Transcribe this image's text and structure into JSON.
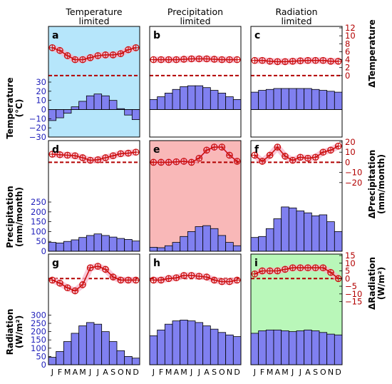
{
  "figure": {
    "col_titles": [
      "Temperature\nlimited",
      "Precipitation\nlimited",
      "Radiation\nlimited"
    ],
    "left_labels": [
      {
        "line1": "Temperature",
        "line2": "(°C)"
      },
      {
        "line1": "Precipitation",
        "line2": "(mm/month)"
      },
      {
        "line1": "Radiation",
        "line2": "(W/m²)"
      }
    ],
    "right_labels": [
      "ΔTemperature",
      "ΔPrecipitation",
      "(mm/month)",
      "ΔRadiation",
      "(W/m²)"
    ],
    "right_labels_display": {
      "temp": "ΔTemperature",
      "prec_line1": "ΔPrecipitation",
      "prec_line2": "(mm/month)",
      "rad_line1": "ΔRadiation",
      "rad_line2": "(W/m²)"
    },
    "month_labels": [
      "J",
      "F",
      "M",
      "A",
      "M",
      "J",
      "J",
      "A",
      "S",
      "O",
      "N",
      "D"
    ],
    "colors": {
      "bar": "#8080f0",
      "bar_edge": "#000000",
      "delta_line": "#cc1111",
      "delta_band": "#f7b6cc",
      "dashed_zero": "#b30000",
      "right_axis": "#b30000",
      "highlight_blue": "#b6e6fb",
      "highlight_red": "#f9b8b8",
      "highlight_green": "#b9f7b9"
    }
  },
  "chart_data": [
    {
      "panel": "a",
      "type": "bar",
      "variable": "Temperature",
      "row": 0,
      "col": 0,
      "highlight": "blue",
      "categories": [
        "J",
        "F",
        "M",
        "A",
        "M",
        "J",
        "J",
        "A",
        "S",
        "O",
        "N",
        "D"
      ],
      "values": [
        -12,
        -9,
        -4,
        3,
        9,
        15,
        17,
        15,
        10,
        1,
        -6,
        -11
      ],
      "ylim": [
        -30,
        30
      ],
      "yticks": [
        "−30",
        "−20",
        "−10",
        "0",
        "10",
        "20",
        "30"
      ],
      "delta": [
        7,
        6.3,
        5,
        4,
        4,
        4.5,
        5,
        5.2,
        5.2,
        5.5,
        6.5,
        7
      ]
    },
    {
      "panel": "b",
      "type": "bar",
      "variable": "Temperature",
      "row": 0,
      "col": 1,
      "highlight": "none",
      "categories": [
        "J",
        "F",
        "M",
        "A",
        "M",
        "J",
        "J",
        "A",
        "S",
        "O",
        "N",
        "D"
      ],
      "values": [
        11,
        14,
        18,
        22,
        25,
        26,
        26,
        24,
        21,
        18,
        14,
        11
      ],
      "delta": [
        4,
        4,
        4,
        4,
        4.1,
        4.2,
        4.2,
        4.2,
        4.1,
        4,
        4,
        4
      ]
    },
    {
      "panel": "c",
      "type": "bar",
      "variable": "Temperature",
      "row": 0,
      "col": 2,
      "highlight": "none",
      "categories": [
        "J",
        "F",
        "M",
        "A",
        "M",
        "J",
        "J",
        "A",
        "S",
        "O",
        "N",
        "D"
      ],
      "values": [
        19,
        21,
        22,
        23,
        23,
        23,
        23,
        23,
        22,
        21,
        20,
        19
      ],
      "delta": [
        3.8,
        3.8,
        3.6,
        3.5,
        3.5,
        3.6,
        3.7,
        3.8,
        3.8,
        3.8,
        3.6,
        3.6
      ],
      "right_ylim": [
        -2,
        12
      ],
      "right_yticks": [
        "0",
        "2",
        "4",
        "6",
        "8",
        "10",
        "12"
      ]
    },
    {
      "panel": "d",
      "type": "bar",
      "variable": "Precipitation",
      "row": 1,
      "col": 0,
      "highlight": "none",
      "categories": [
        "J",
        "F",
        "M",
        "A",
        "M",
        "J",
        "J",
        "A",
        "S",
        "O",
        "N",
        "D"
      ],
      "values": [
        45,
        42,
        50,
        58,
        70,
        80,
        88,
        80,
        72,
        65,
        60,
        52
      ],
      "ylim": [
        0,
        290
      ],
      "yticks": [
        "0",
        "50",
        "100",
        "150",
        "200",
        "250"
      ],
      "delta": [
        8,
        7.5,
        7,
        6.5,
        4.5,
        2,
        2.5,
        4.5,
        6.5,
        8.5,
        9,
        10
      ]
    },
    {
      "panel": "e",
      "type": "bar",
      "variable": "Precipitation",
      "row": 1,
      "col": 1,
      "highlight": "red",
      "categories": [
        "J",
        "F",
        "M",
        "A",
        "M",
        "J",
        "J",
        "A",
        "S",
        "O",
        "N",
        "D"
      ],
      "values": [
        20,
        18,
        28,
        45,
        75,
        100,
        125,
        130,
        115,
        80,
        45,
        28
      ],
      "delta": [
        0,
        0,
        0,
        0.5,
        1,
        0,
        4,
        12,
        15,
        15,
        7,
        1
      ]
    },
    {
      "panel": "f",
      "type": "bar",
      "variable": "Precipitation",
      "row": 1,
      "col": 2,
      "highlight": "none",
      "categories": [
        "J",
        "F",
        "M",
        "A",
        "M",
        "J",
        "J",
        "A",
        "S",
        "O",
        "N",
        "D"
      ],
      "values": [
        70,
        75,
        115,
        165,
        225,
        220,
        205,
        195,
        180,
        185,
        150,
        100
      ],
      "delta": [
        7,
        1,
        7,
        15,
        6,
        2,
        5,
        4,
        5,
        10,
        12,
        16
      ],
      "right_ylim": [
        -30,
        20
      ],
      "right_yticks": [
        "−20",
        "−10",
        "0",
        "10",
        "20"
      ]
    },
    {
      "panel": "g",
      "type": "bar",
      "variable": "Radiation",
      "row": 2,
      "col": 0,
      "highlight": "none",
      "categories": [
        "J",
        "F",
        "M",
        "A",
        "M",
        "J",
        "J",
        "A",
        "S",
        "O",
        "N",
        "D"
      ],
      "values": [
        45,
        80,
        140,
        190,
        235,
        255,
        245,
        200,
        140,
        85,
        50,
        40
      ],
      "ylim": [
        0,
        345
      ],
      "yticks": [
        "0",
        "50",
        "100",
        "150",
        "200",
        "250",
        "300"
      ],
      "delta": [
        -1,
        -3,
        -6,
        -8,
        -4,
        7,
        8,
        6,
        1,
        -1,
        -1,
        -1
      ]
    },
    {
      "panel": "h",
      "type": "bar",
      "variable": "Radiation",
      "row": 2,
      "col": 1,
      "highlight": "none",
      "categories": [
        "J",
        "F",
        "M",
        "A",
        "M",
        "J",
        "J",
        "A",
        "S",
        "O",
        "N",
        "D"
      ],
      "values": [
        175,
        210,
        245,
        265,
        270,
        265,
        255,
        235,
        215,
        195,
        180,
        170
      ],
      "delta": [
        -1,
        -1,
        0,
        0.5,
        2,
        2,
        1.5,
        1,
        -1,
        -2,
        -2,
        -1
      ]
    },
    {
      "panel": "i",
      "type": "bar",
      "variable": "Radiation",
      "row": 2,
      "col": 2,
      "highlight": "green",
      "categories": [
        "J",
        "F",
        "M",
        "A",
        "M",
        "J",
        "J",
        "A",
        "S",
        "O",
        "N",
        "D"
      ],
      "values": [
        190,
        205,
        210,
        210,
        205,
        200,
        205,
        210,
        205,
        195,
        185,
        180
      ],
      "delta": [
        3,
        5,
        5,
        5,
        6,
        7,
        7,
        7,
        7,
        7,
        4,
        0
      ],
      "right_ylim": [
        -18,
        15
      ],
      "right_yticks": [
        "−15",
        "−10",
        "−5",
        "0",
        "5",
        "10",
        "15"
      ]
    }
  ]
}
